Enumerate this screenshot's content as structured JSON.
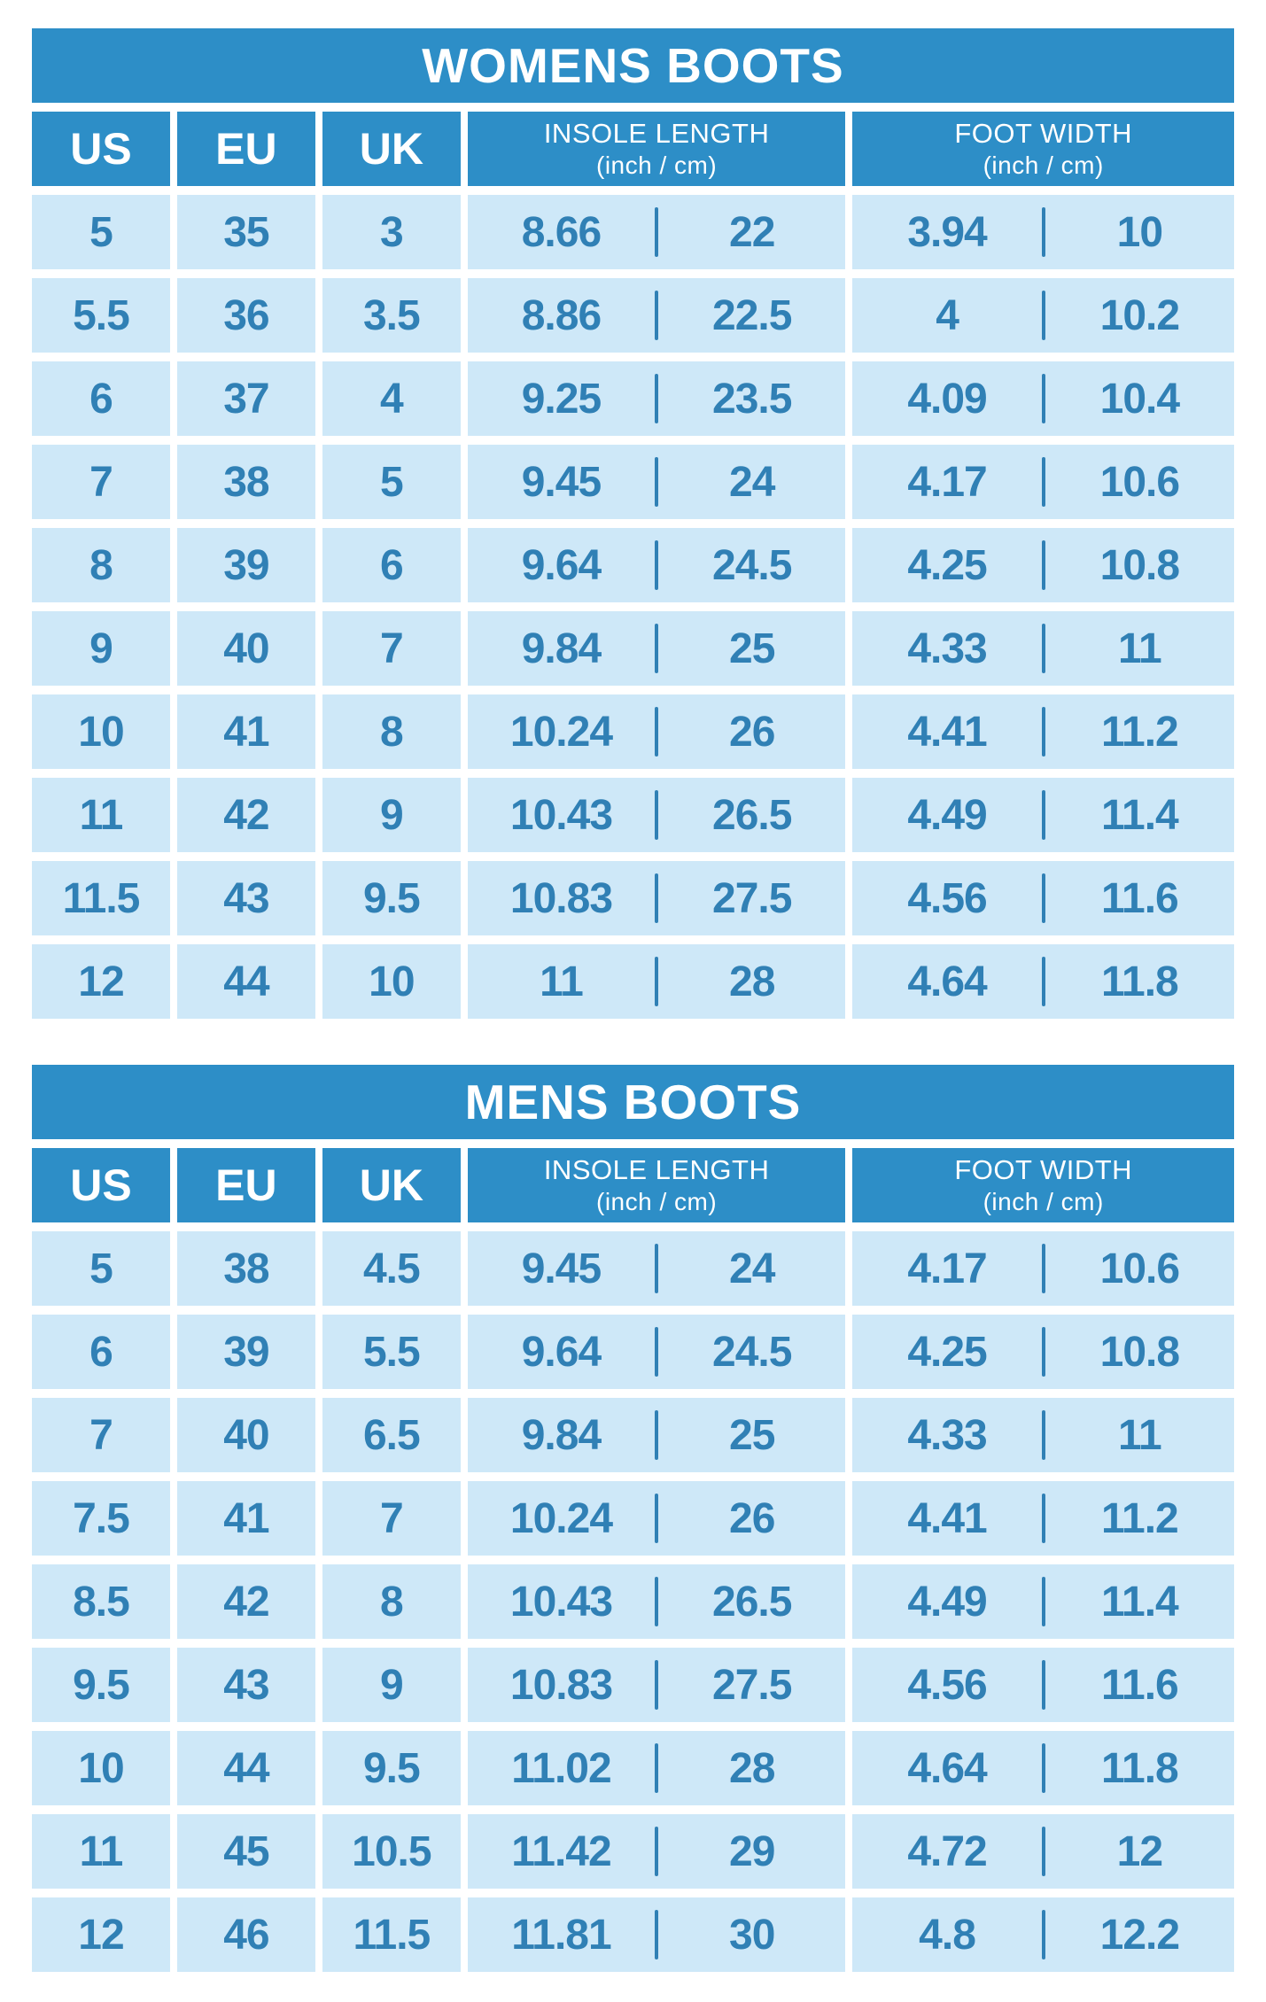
{
  "colors": {
    "header_blue": "#2D8EC7",
    "cell_blue": "#CEE8F8",
    "text_blue": "#3080B5",
    "header_text": "#FFFFFF",
    "page_bg": "#FFFFFF"
  },
  "tables": [
    {
      "title": "WOMENS BOOTS",
      "columns": {
        "us": "US",
        "eu": "EU",
        "uk": "UK",
        "insole": {
          "line1": "INSOLE LENGTH",
          "line2": "(inch / cm)"
        },
        "foot": {
          "line1": "FOOT WIDTH",
          "line2": "(inch / cm)"
        }
      },
      "rows": [
        [
          "5",
          "35",
          "3",
          "8.66",
          "22",
          "3.94",
          "10"
        ],
        [
          "5.5",
          "36",
          "3.5",
          "8.86",
          "22.5",
          "4",
          "10.2"
        ],
        [
          "6",
          "37",
          "4",
          "9.25",
          "23.5",
          "4.09",
          "10.4"
        ],
        [
          "7",
          "38",
          "5",
          "9.45",
          "24",
          "4.17",
          "10.6"
        ],
        [
          "8",
          "39",
          "6",
          "9.64",
          "24.5",
          "4.25",
          "10.8"
        ],
        [
          "9",
          "40",
          "7",
          "9.84",
          "25",
          "4.33",
          "11"
        ],
        [
          "10",
          "41",
          "8",
          "10.24",
          "26",
          "4.41",
          "11.2"
        ],
        [
          "11",
          "42",
          "9",
          "10.43",
          "26.5",
          "4.49",
          "11.4"
        ],
        [
          "11.5",
          "43",
          "9.5",
          "10.83",
          "27.5",
          "4.56",
          "11.6"
        ],
        [
          "12",
          "44",
          "10",
          "11",
          "28",
          "4.64",
          "11.8"
        ]
      ]
    },
    {
      "title": "MENS BOOTS",
      "columns": {
        "us": "US",
        "eu": "EU",
        "uk": "UK",
        "insole": {
          "line1": "INSOLE LENGTH",
          "line2": "(inch / cm)"
        },
        "foot": {
          "line1": "FOOT WIDTH",
          "line2": "(inch / cm)"
        }
      },
      "rows": [
        [
          "5",
          "38",
          "4.5",
          "9.45",
          "24",
          "4.17",
          "10.6"
        ],
        [
          "6",
          "39",
          "5.5",
          "9.64",
          "24.5",
          "4.25",
          "10.8"
        ],
        [
          "7",
          "40",
          "6.5",
          "9.84",
          "25",
          "4.33",
          "11"
        ],
        [
          "7.5",
          "41",
          "7",
          "10.24",
          "26",
          "4.41",
          "11.2"
        ],
        [
          "8.5",
          "42",
          "8",
          "10.43",
          "26.5",
          "4.49",
          "11.4"
        ],
        [
          "9.5",
          "43",
          "9",
          "10.83",
          "27.5",
          "4.56",
          "11.6"
        ],
        [
          "10",
          "44",
          "9.5",
          "11.02",
          "28",
          "4.64",
          "11.8"
        ],
        [
          "11",
          "45",
          "10.5",
          "11.42",
          "29",
          "4.72",
          "12"
        ],
        [
          "12",
          "46",
          "11.5",
          "11.81",
          "30",
          "4.8",
          "12.2"
        ]
      ]
    }
  ],
  "chart_data": [
    {
      "type": "table",
      "title": "WOMENS BOOTS",
      "columns": [
        "US",
        "EU",
        "UK",
        "INSOLE LENGTH (inch)",
        "INSOLE LENGTH (cm)",
        "FOOT WIDTH (inch)",
        "FOOT WIDTH (cm)"
      ],
      "rows": [
        [
          5,
          35,
          3,
          8.66,
          22,
          3.94,
          10
        ],
        [
          5.5,
          36,
          3.5,
          8.86,
          22.5,
          4,
          10.2
        ],
        [
          6,
          37,
          4,
          9.25,
          23.5,
          4.09,
          10.4
        ],
        [
          7,
          38,
          5,
          9.45,
          24,
          4.17,
          10.6
        ],
        [
          8,
          39,
          6,
          9.64,
          24.5,
          4.25,
          10.8
        ],
        [
          9,
          40,
          7,
          9.84,
          25,
          4.33,
          11
        ],
        [
          10,
          41,
          8,
          10.24,
          26,
          4.41,
          11.2
        ],
        [
          11,
          42,
          9,
          10.43,
          26.5,
          4.49,
          11.4
        ],
        [
          11.5,
          43,
          9.5,
          10.83,
          27.5,
          4.56,
          11.6
        ],
        [
          12,
          44,
          10,
          11,
          28,
          4.64,
          11.8
        ]
      ]
    },
    {
      "type": "table",
      "title": "MENS BOOTS",
      "columns": [
        "US",
        "EU",
        "UK",
        "INSOLE LENGTH (inch)",
        "INSOLE LENGTH (cm)",
        "FOOT WIDTH (inch)",
        "FOOT WIDTH (cm)"
      ],
      "rows": [
        [
          5,
          38,
          4.5,
          9.45,
          24,
          4.17,
          10.6
        ],
        [
          6,
          39,
          5.5,
          9.64,
          24.5,
          4.25,
          10.8
        ],
        [
          7,
          40,
          6.5,
          9.84,
          25,
          4.33,
          11
        ],
        [
          7.5,
          41,
          7,
          10.24,
          26,
          4.41,
          11.2
        ],
        [
          8.5,
          42,
          8,
          10.43,
          26.5,
          4.49,
          11.4
        ],
        [
          9.5,
          43,
          9,
          10.83,
          27.5,
          4.56,
          11.6
        ],
        [
          10,
          44,
          9.5,
          11.02,
          28,
          4.64,
          11.8
        ],
        [
          11,
          45,
          10.5,
          11.42,
          29,
          4.72,
          12
        ],
        [
          12,
          46,
          11.5,
          11.81,
          30,
          4.8,
          12.2
        ]
      ]
    }
  ]
}
